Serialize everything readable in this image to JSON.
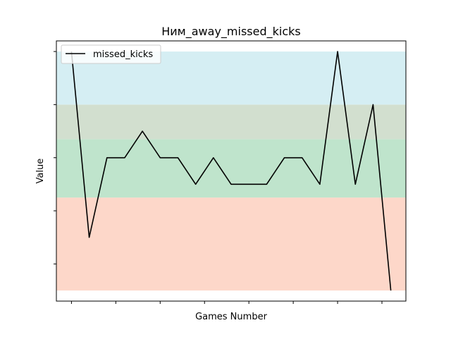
{
  "chart_data": {
    "type": "line",
    "title": "Ним_away_missed_kicks",
    "xlabel": "Games Number",
    "ylabel": "Value",
    "x": [
      0,
      1,
      2,
      3,
      4,
      5,
      6,
      7,
      8,
      9,
      10,
      11,
      12,
      13,
      14,
      15,
      16,
      17,
      18
    ],
    "series": [
      {
        "name": "missed_kicks",
        "color": "#000000",
        "values": [
          8,
          1,
          4,
          4,
          5,
          4,
          4,
          3,
          4,
          3,
          3,
          3,
          4,
          4,
          3,
          8,
          3,
          6,
          -1
        ]
      }
    ],
    "xlim": [
      -0.85,
      18.85
    ],
    "ylim": [
      -1.4,
      8.4
    ],
    "x_ticks": [
      0,
      2.5,
      5,
      7.5,
      10,
      12.5,
      15,
      17.5
    ],
    "y_ticks": [
      0,
      2,
      4,
      6,
      8
    ],
    "tick_labels_visible": false,
    "bands": [
      {
        "from": -1,
        "to": 2.5,
        "color": "#fdd7c9"
      },
      {
        "from": 2.5,
        "to": 4.7,
        "color": "#bfe4cc"
      },
      {
        "from": 4.7,
        "to": 6.0,
        "color": "#d2dfcf"
      },
      {
        "from": 6.0,
        "to": 8.0,
        "color": "#d5eef3"
      }
    ],
    "legend": {
      "position": "top-left"
    },
    "grid": false
  }
}
